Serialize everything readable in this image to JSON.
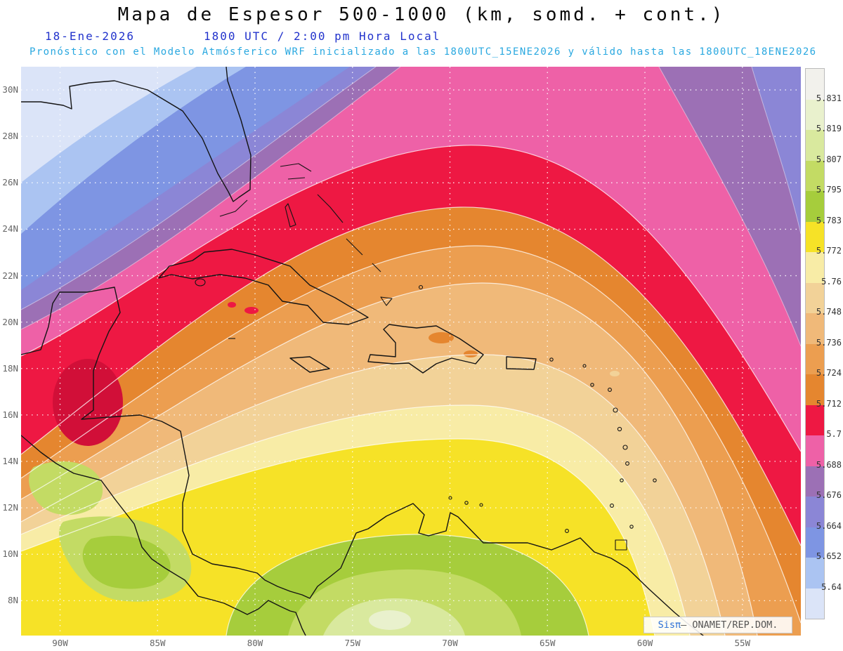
{
  "header": {
    "title": "Mapa de Espesor 500-1000 (km, somd. + cont.)",
    "date": "18-Ene-2026",
    "time": "1800 UTC / 2:00 pm Hora Local",
    "forecast": "Pronóstico con el Modelo Atmósferico WRF inicializado a las 1800UTC_15ENE2026 y válido hasta las  1800UTC_18ENE2026"
  },
  "map": {
    "lat_ticks": [
      {
        "label": "30N",
        "deg": 30
      },
      {
        "label": "28N",
        "deg": 28
      },
      {
        "label": "26N",
        "deg": 26
      },
      {
        "label": "24N",
        "deg": 24
      },
      {
        "label": "22N",
        "deg": 22
      },
      {
        "label": "20N",
        "deg": 20
      },
      {
        "label": "18N",
        "deg": 18
      },
      {
        "label": "16N",
        "deg": 16
      },
      {
        "label": "14N",
        "deg": 14
      },
      {
        "label": "12N",
        "deg": 12
      },
      {
        "label": "10N",
        "deg": 10
      },
      {
        "label": "8N",
        "deg": 8
      }
    ],
    "lon_ticks": [
      {
        "label": "90W",
        "deg": 90
      },
      {
        "label": "85W",
        "deg": 85
      },
      {
        "label": "80W",
        "deg": 80
      },
      {
        "label": "75W",
        "deg": 75
      },
      {
        "label": "70W",
        "deg": 70
      },
      {
        "label": "65W",
        "deg": 65
      },
      {
        "label": "60W",
        "deg": 60
      },
      {
        "label": "55W",
        "deg": 55
      }
    ],
    "special_colors": {
      "deep_red": "#d10f38"
    }
  },
  "legend": {
    "values": [
      "5.831",
      "5.819",
      "5.807",
      "5.795",
      "5.783",
      "5.772",
      "5.76",
      "5.748",
      "5.736",
      "5.724",
      "5.712",
      "5.7",
      "5.688",
      "5.676",
      "5.664",
      "5.652",
      "5.64"
    ],
    "colors": [
      "#f2f1ec",
      "#e9f1cd",
      "#d9e99e",
      "#c3db64",
      "#a6cd3c",
      "#f6e227",
      "#f8eca6",
      "#f2d298",
      "#f0b979",
      "#ec9e50",
      "#e5862f",
      "#ee1843",
      "#ee61a7",
      "#9c70b5",
      "#8b86d6",
      "#7e95e3",
      "#abc4f2",
      "#dbe4f8"
    ]
  },
  "watermark": {
    "brand": "Sisπ",
    "rest": "– ONAMET/REP.DOM."
  },
  "chart_data": {
    "type": "heatmap",
    "title": "Mapa de Espesor 500-1000 (km, somd. + cont.)",
    "variable": "Espesor 500-1000",
    "units": "km",
    "levels": [
      5.64,
      5.652,
      5.664,
      5.676,
      5.688,
      5.7,
      5.712,
      5.724,
      5.736,
      5.748,
      5.76,
      5.772,
      5.783,
      5.795,
      5.807,
      5.819,
      5.831
    ],
    "x_ticks": [
      "90W",
      "85W",
      "80W",
      "75W",
      "70W",
      "65W",
      "60W",
      "55W"
    ],
    "y_ticks": [
      "30N",
      "28N",
      "26N",
      "24N",
      "22N",
      "20N",
      "18N",
      "16N",
      "14N",
      "12N",
      "10N",
      "8N"
    ],
    "pattern": "low thickness (blues ~5.64) northwest, ridge of high thickness (greens ~5.81) over northern South America; red 5.7 band arcs over Cuba and the Bahamas"
  }
}
